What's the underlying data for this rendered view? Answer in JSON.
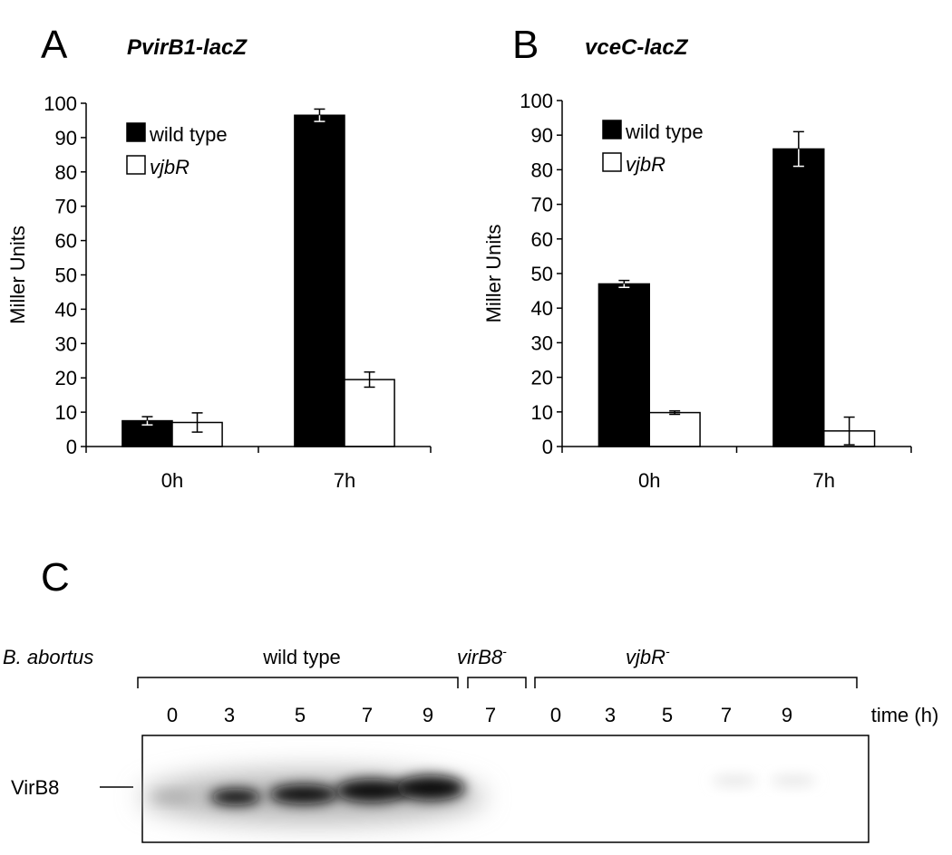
{
  "chart_data": [
    {
      "type": "bar",
      "panel": "A",
      "title": "PvirB1-lacZ",
      "y_label": "Miller Units",
      "categories": [
        "0h",
        "7h"
      ],
      "series": [
        {
          "name": "wild type",
          "color": "#000000",
          "values": [
            7.5,
            96.5
          ],
          "errors": [
            1.2,
            1.8
          ]
        },
        {
          "name": "vjbR",
          "color": "#ffffff",
          "values": [
            7,
            19.5
          ],
          "errors": [
            2.8,
            2.2
          ]
        }
      ],
      "ylim": [
        0,
        100
      ],
      "yticks": [
        0,
        10,
        20,
        30,
        40,
        50,
        60,
        70,
        80,
        90,
        100
      ],
      "legend": "upper left"
    },
    {
      "type": "bar",
      "panel": "B",
      "title": "vceC-lacZ",
      "y_label": "Miller Units",
      "categories": [
        "0h",
        "7h"
      ],
      "series": [
        {
          "name": "wild type",
          "color": "#000000",
          "values": [
            47,
            86
          ],
          "errors": [
            1,
            5
          ]
        },
        {
          "name": "vjbR",
          "color": "#ffffff",
          "values": [
            9.8,
            4.5
          ],
          "errors": [
            0.5,
            4
          ]
        }
      ],
      "ylim": [
        0,
        100
      ],
      "yticks": [
        0,
        10,
        20,
        30,
        40,
        50,
        60,
        70,
        80,
        90,
        100
      ],
      "legend": "upper left"
    }
  ],
  "blot": {
    "panel": "C",
    "organism": "B. abortus",
    "strains": [
      {
        "name": "wild type"
      },
      {
        "name": "virB8",
        "superscript": "-"
      },
      {
        "name": "vjbR",
        "superscript": "-"
      }
    ],
    "lanes": [
      "0",
      "3",
      "5",
      "7",
      "9",
      "7",
      "0",
      "3",
      "5",
      "7",
      "9"
    ],
    "lane_axis": "time (h)",
    "band": "VirB8"
  }
}
